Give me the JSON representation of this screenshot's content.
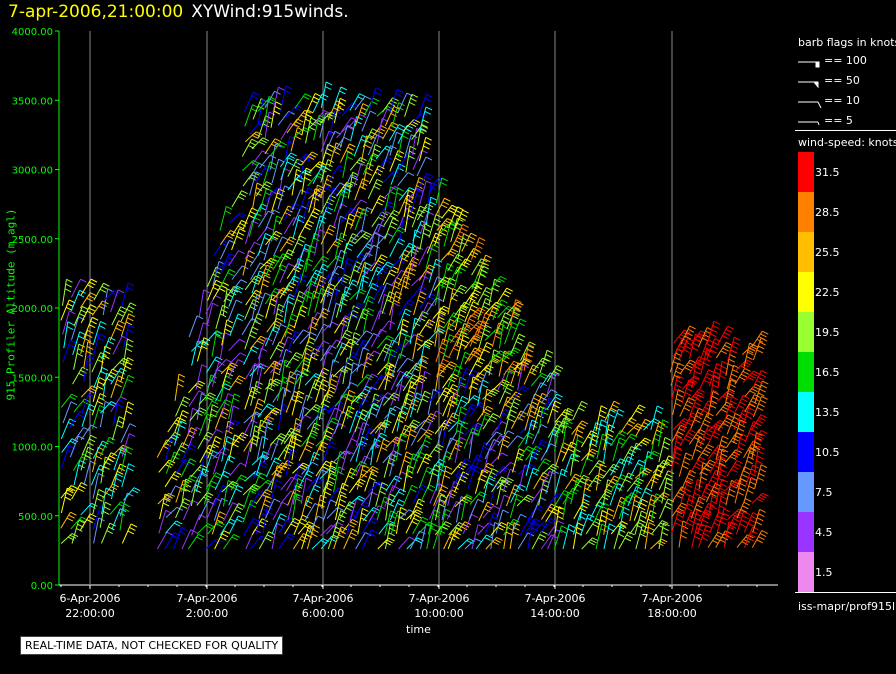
{
  "header": {
    "time": "7-apr-2006,21:00:00",
    "title": "XYWind:915winds."
  },
  "chart_data": {
    "type": "wind barbs",
    "ylabel": "915 Profiler Altitude (m agl)",
    "xlabel": "time",
    "ylim": [
      0,
      4000
    ],
    "yticks": [
      "0.00",
      "500.00",
      "1000.00",
      "1500.00",
      "2000.00",
      "2500.00",
      "3000.00",
      "3500.00",
      "4000.00"
    ],
    "xticks": [
      {
        "date": "6-Apr-2006",
        "time": "22:00:00"
      },
      {
        "date": "7-Apr-2006",
        "time": "2:00:00"
      },
      {
        "date": "7-Apr-2006",
        "time": "6:00:00"
      },
      {
        "date": "7-Apr-2006",
        "time": "10:00:00"
      },
      {
        "date": "7-Apr-2006",
        "time": "14:00:00"
      },
      {
        "date": "7-Apr-2006",
        "time": "18:00:00"
      }
    ],
    "grid": "vertical lines at labeled times"
  },
  "legend": {
    "barb_title": "barb flags in knots",
    "barbs": [
      "== 100",
      "== 50",
      "== 10",
      "== 5"
    ],
    "speed_title": "wind-speed: knots",
    "speed_levels": [
      {
        "label": "31.5",
        "color": "#ff0000"
      },
      {
        "label": "28.5",
        "color": "#ff8000"
      },
      {
        "label": "25.5",
        "color": "#ffbf00"
      },
      {
        "label": "22.5",
        "color": "#ffff00"
      },
      {
        "label": "19.5",
        "color": "#99ff33"
      },
      {
        "label": "16.5",
        "color": "#00dd00"
      },
      {
        "label": "13.5",
        "color": "#00ffff"
      },
      {
        "label": "10.5",
        "color": "#0000ff"
      },
      {
        "label": "7.5",
        "color": "#6699ff"
      },
      {
        "label": "4.5",
        "color": "#9933ff"
      },
      {
        "label": "1.5",
        "color": "#ee88ee"
      }
    ],
    "source": "iss-mapr/prof915l"
  },
  "footer": {
    "note": "REAL-TIME DATA, NOT CHECKED FOR QUALITY"
  }
}
